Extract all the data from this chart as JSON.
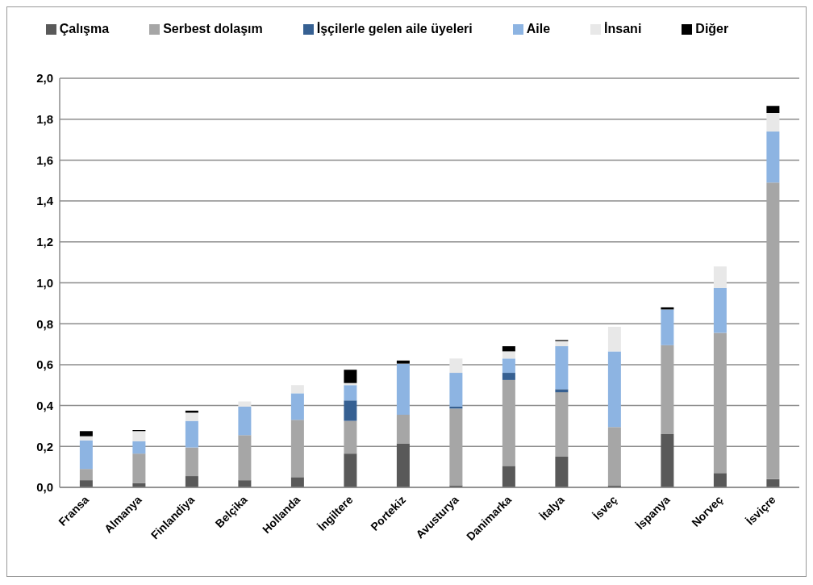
{
  "chart_data": {
    "type": "bar",
    "stacked": true,
    "categories": [
      "Fransa",
      "Almanya",
      "Finlandiya",
      "Belçika",
      "Hollanda",
      "İngiltere",
      "Portekiz",
      "Avusturya",
      "Danimarka",
      "İtalya",
      "İsveç",
      "İspanya",
      "Norveç",
      "İsviçre"
    ],
    "series": [
      {
        "name": "Çalışma",
        "color": "#595959",
        "values": [
          0.035,
          0.02,
          0.055,
          0.035,
          0.05,
          0.165,
          0.215,
          0.01,
          0.105,
          0.15,
          0.01,
          0.26,
          0.07,
          0.04
        ]
      },
      {
        "name": "Serbest dolaşım",
        "color": "#a6a6a6",
        "values": [
          0.055,
          0.145,
          0.14,
          0.22,
          0.28,
          0.16,
          0.14,
          0.375,
          0.42,
          0.315,
          0.285,
          0.435,
          0.685,
          1.45
        ]
      },
      {
        "name": "İşçilerle gelen aile üyeleri",
        "color": "#366092",
        "values": [
          0,
          0,
          0,
          0,
          0,
          0.1,
          0,
          0.01,
          0.035,
          0.015,
          0,
          0,
          0,
          0
        ]
      },
      {
        "name": "Aile",
        "color": "#8db4e2",
        "values": [
          0.14,
          0.06,
          0.13,
          0.14,
          0.13,
          0.075,
          0.25,
          0.165,
          0.07,
          0.21,
          0.37,
          0.175,
          0.22,
          0.25
        ]
      },
      {
        "name": "İnsani",
        "color": "#e8e8e8",
        "values": [
          0.02,
          0.05,
          0.04,
          0.025,
          0.04,
          0.01,
          0,
          0.07,
          0.035,
          0.025,
          0.12,
          0,
          0.105,
          0.09
        ]
      },
      {
        "name": "Diğer",
        "color": "#000000",
        "values": [
          0.025,
          0.005,
          0.01,
          0,
          0,
          0.065,
          0.015,
          0,
          0.025,
          0.005,
          0,
          0.01,
          0,
          0.035
        ]
      }
    ],
    "ylim": [
      0,
      2
    ],
    "yticks": [
      {
        "value": 0,
        "label": "0,0"
      },
      {
        "value": 0.2,
        "label": "0,2"
      },
      {
        "value": 0.4,
        "label": "0,4"
      },
      {
        "value": 0.6,
        "label": "0,6"
      },
      {
        "value": 0.8,
        "label": "0,8"
      },
      {
        "value": 1,
        "label": "1,0"
      },
      {
        "value": 1.2,
        "label": "1,2"
      },
      {
        "value": 1.4,
        "label": "1,4"
      },
      {
        "value": 1.6,
        "label": "1,6"
      },
      {
        "value": 1.8,
        "label": "1,8"
      },
      {
        "value": 2,
        "label": "2,0"
      }
    ],
    "grid": "y",
    "legend": "top"
  }
}
